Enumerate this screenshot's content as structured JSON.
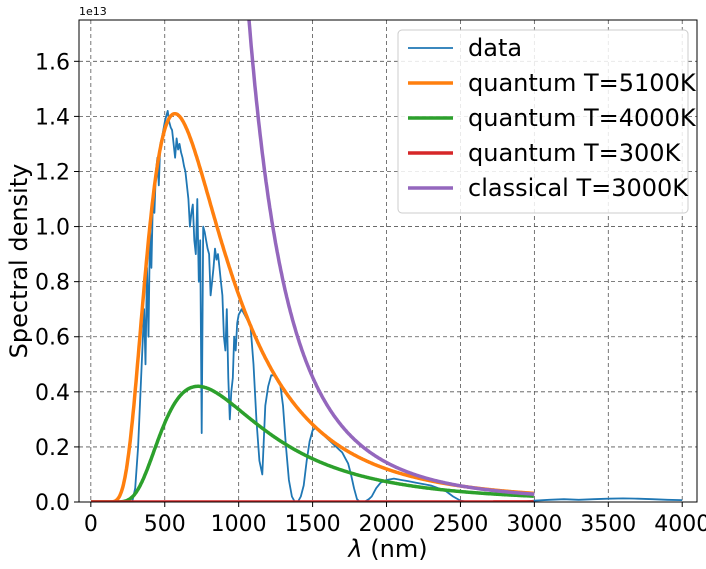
{
  "chart_data": {
    "type": "line",
    "xlabel_symbol": "λ",
    "xlabel_unit": " (nm)",
    "ylabel": "Spectral density",
    "y_offset_label": "1e13",
    "y_scale": 10000000000000.0,
    "xlim": [
      -80,
      4100
    ],
    "ylim": [
      0,
      1.75
    ],
    "x_ticks": [
      0,
      500,
      1000,
      1500,
      2000,
      2500,
      3000,
      3500,
      4000
    ],
    "y_ticks": [
      0.0,
      0.2,
      0.4,
      0.6,
      0.8,
      1.0,
      1.2,
      1.4,
      1.6
    ],
    "y_tick_labels": [
      "0.0",
      "0.2",
      "0.4",
      "0.6",
      "0.8",
      "1.0",
      "1.2",
      "1.4",
      "1.6"
    ],
    "grid": true,
    "legend_position": "top-right",
    "series": [
      {
        "name": "data",
        "color": "#1f77b4",
        "kind": "measured",
        "points": [
          [
            280,
            0.0
          ],
          [
            300,
            0.05
          ],
          [
            320,
            0.2
          ],
          [
            340,
            0.45
          ],
          [
            360,
            0.7
          ],
          [
            370,
            0.5
          ],
          [
            380,
            0.85
          ],
          [
            390,
            0.6
          ],
          [
            400,
            1.0
          ],
          [
            410,
            0.85
          ],
          [
            420,
            1.1
          ],
          [
            430,
            1.05
          ],
          [
            440,
            1.2
          ],
          [
            450,
            1.25
          ],
          [
            460,
            1.15
          ],
          [
            470,
            1.3
          ],
          [
            480,
            1.32
          ],
          [
            490,
            1.35
          ],
          [
            500,
            1.38
          ],
          [
            510,
            1.4
          ],
          [
            520,
            1.42
          ],
          [
            530,
            1.38
          ],
          [
            540,
            1.36
          ],
          [
            550,
            1.35
          ],
          [
            560,
            1.3
          ],
          [
            570,
            1.25
          ],
          [
            580,
            1.32
          ],
          [
            590,
            1.28
          ],
          [
            600,
            1.3
          ],
          [
            610,
            1.27
          ],
          [
            620,
            1.25
          ],
          [
            630,
            1.22
          ],
          [
            640,
            1.2
          ],
          [
            650,
            1.15
          ],
          [
            660,
            1.1
          ],
          [
            670,
            1.0
          ],
          [
            680,
            1.05
          ],
          [
            690,
            1.08
          ],
          [
            700,
            0.95
          ],
          [
            710,
            0.9
          ],
          [
            720,
            1.1
          ],
          [
            730,
            0.8
          ],
          [
            740,
            0.95
          ],
          [
            750,
            0.25
          ],
          [
            760,
            1.0
          ],
          [
            770,
            0.98
          ],
          [
            780,
            0.95
          ],
          [
            790,
            0.92
          ],
          [
            800,
            0.9
          ],
          [
            810,
            0.75
          ],
          [
            820,
            0.8
          ],
          [
            830,
            0.85
          ],
          [
            840,
            0.92
          ],
          [
            850,
            0.88
          ],
          [
            860,
            0.9
          ],
          [
            870,
            0.85
          ],
          [
            880,
            0.8
          ],
          [
            890,
            0.75
          ],
          [
            900,
            0.6
          ],
          [
            910,
            0.55
          ],
          [
            920,
            0.7
          ],
          [
            930,
            0.45
          ],
          [
            940,
            0.3
          ],
          [
            950,
            0.4
          ],
          [
            960,
            0.45
          ],
          [
            970,
            0.6
          ],
          [
            980,
            0.55
          ],
          [
            990,
            0.65
          ],
          [
            1000,
            0.68
          ],
          [
            1020,
            0.7
          ],
          [
            1040,
            0.68
          ],
          [
            1060,
            0.66
          ],
          [
            1080,
            0.64
          ],
          [
            1100,
            0.5
          ],
          [
            1120,
            0.3
          ],
          [
            1140,
            0.15
          ],
          [
            1160,
            0.1
          ],
          [
            1180,
            0.35
          ],
          [
            1200,
            0.42
          ],
          [
            1220,
            0.46
          ],
          [
            1240,
            0.46
          ],
          [
            1260,
            0.45
          ],
          [
            1280,
            0.43
          ],
          [
            1300,
            0.35
          ],
          [
            1320,
            0.2
          ],
          [
            1340,
            0.08
          ],
          [
            1360,
            0.02
          ],
          [
            1380,
            0.0
          ],
          [
            1400,
            0.0
          ],
          [
            1420,
            0.02
          ],
          [
            1440,
            0.06
          ],
          [
            1460,
            0.15
          ],
          [
            1480,
            0.22
          ],
          [
            1500,
            0.26
          ],
          [
            1520,
            0.27
          ],
          [
            1540,
            0.26
          ],
          [
            1560,
            0.25
          ],
          [
            1580,
            0.24
          ],
          [
            1600,
            0.23
          ],
          [
            1620,
            0.22
          ],
          [
            1640,
            0.21
          ],
          [
            1660,
            0.2
          ],
          [
            1680,
            0.19
          ],
          [
            1700,
            0.18
          ],
          [
            1720,
            0.16
          ],
          [
            1740,
            0.14
          ],
          [
            1760,
            0.1
          ],
          [
            1780,
            0.05
          ],
          [
            1800,
            0.01
          ],
          [
            1820,
            0.0
          ],
          [
            1850,
            0.0
          ],
          [
            1880,
            0.01
          ],
          [
            1900,
            0.02
          ],
          [
            1930,
            0.05
          ],
          [
            1960,
            0.07
          ],
          [
            2000,
            0.08
          ],
          [
            2050,
            0.085
          ],
          [
            2100,
            0.08
          ],
          [
            2150,
            0.075
          ],
          [
            2200,
            0.07
          ],
          [
            2250,
            0.065
          ],
          [
            2300,
            0.06
          ],
          [
            2350,
            0.05
          ],
          [
            2400,
            0.04
          ],
          [
            2450,
            0.02
          ],
          [
            2500,
            0.005
          ],
          [
            2550,
            0.0
          ],
          [
            2600,
            0.0
          ],
          [
            2700,
            0.0
          ],
          [
            2800,
            0.0
          ],
          [
            2900,
            0.0
          ],
          [
            3000,
            0.005
          ],
          [
            3100,
            0.008
          ],
          [
            3200,
            0.01
          ],
          [
            3300,
            0.008
          ],
          [
            3400,
            0.01
          ],
          [
            3500,
            0.012
          ],
          [
            3600,
            0.013
          ],
          [
            3700,
            0.012
          ],
          [
            3800,
            0.01
          ],
          [
            3900,
            0.008
          ],
          [
            4000,
            0.007
          ]
        ]
      },
      {
        "name": "quantum T=5100K",
        "color": "#ff7f0e",
        "kind": "planck",
        "T": 5100,
        "peak": 1.41,
        "x_range": [
          1,
          3000
        ]
      },
      {
        "name": "quantum T=4000K",
        "color": "#2ca02c",
        "kind": "planck",
        "T": 4000,
        "peak": 0.42,
        "x_range": [
          1,
          3000
        ]
      },
      {
        "name": "quantum T=300K",
        "color": "#d62728",
        "kind": "planck",
        "T": 300,
        "peak": 0.1,
        "x_range": [
          1,
          3000
        ]
      },
      {
        "name": "classical T=3000K",
        "color": "#9467bd",
        "kind": "classical",
        "x_at_top": 1070,
        "y_at_top": 1.75,
        "x_range": [
          1070,
          3000
        ]
      }
    ]
  }
}
